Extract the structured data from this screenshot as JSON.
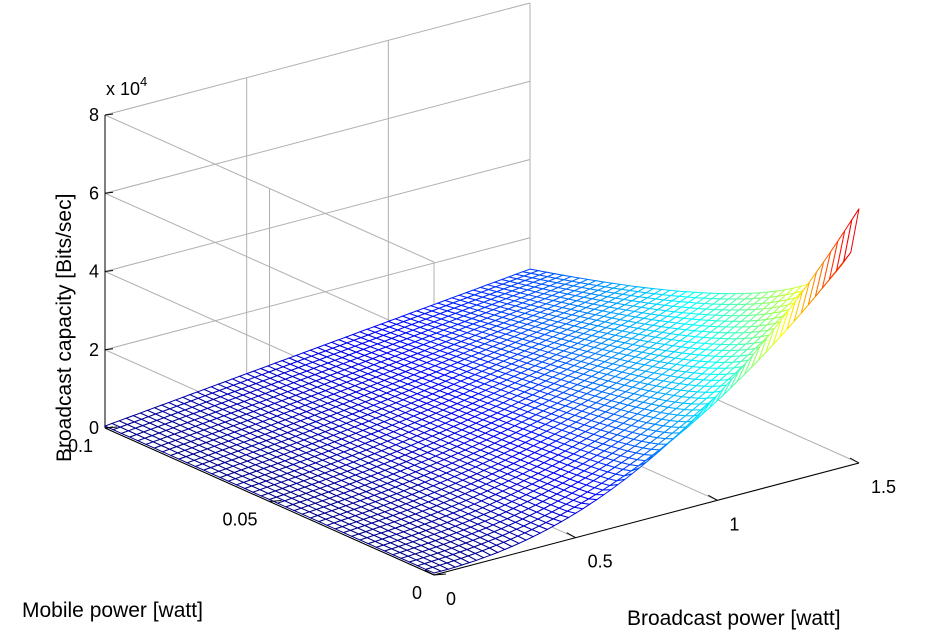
{
  "chart_data": {
    "type": "surface",
    "xlabel": "Broadcast power [watt]",
    "ylabel": "Mobile power [watt]",
    "zlabel": "Broadcast capacity [Bits/sec]",
    "z_scale_label": "x 10",
    "z_scale_exponent": "4",
    "grid": true,
    "colormap": "jet",
    "xlim": [
      0,
      1.5
    ],
    "ylim": [
      0,
      0.1
    ],
    "zlim": [
      0,
      80000
    ],
    "x_ticks": [
      0,
      0.5,
      1,
      1.5
    ],
    "x_tick_labels": [
      "0",
      "0.5",
      "1",
      "1.5"
    ],
    "y_ticks": [
      0,
      0.05,
      0.1
    ],
    "y_tick_labels": [
      "0",
      "0.05",
      "0.1"
    ],
    "z_ticks": [
      0,
      20000,
      40000,
      60000,
      80000
    ],
    "z_tick_labels": [
      "0",
      "2",
      "4",
      "6",
      "8"
    ],
    "surface": {
      "x_range": [
        0,
        1.5
      ],
      "y_range": [
        0,
        0.1
      ],
      "z_corners": {
        "x0_y0": 500,
        "x0_y0.1": 500,
        "x1.5_y0": 65000,
        "x1.5_y0.1": 12000
      }
    }
  }
}
